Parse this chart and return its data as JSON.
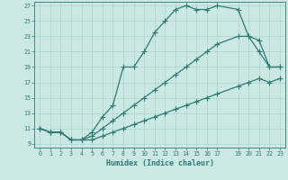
{
  "title": "",
  "xlabel": "Humidex (Indice chaleur)",
  "bg_color": "#cce8e4",
  "line_color": "#2d7a72",
  "grid_color": "#aad4ce",
  "xlim": [
    -0.5,
    23.5
  ],
  "ylim": [
    8.5,
    27.5
  ],
  "xticks": [
    0,
    1,
    2,
    3,
    4,
    5,
    6,
    7,
    8,
    9,
    10,
    11,
    12,
    13,
    14,
    15,
    16,
    17,
    19,
    20,
    21,
    22,
    23
  ],
  "yticks": [
    9,
    11,
    13,
    15,
    17,
    19,
    21,
    23,
    25,
    27
  ],
  "line1_x": [
    0,
    1,
    2,
    3,
    4,
    5,
    6,
    7,
    8,
    9,
    10,
    11,
    12,
    13,
    14,
    15,
    16,
    17,
    19,
    20,
    21,
    22,
    23
  ],
  "line1_y": [
    11,
    10.5,
    10.5,
    9.5,
    9.5,
    10.5,
    12.5,
    14,
    19,
    19,
    21,
    23.5,
    25,
    26.5,
    27,
    26.5,
    26.5,
    27,
    26.5,
    23,
    21,
    19,
    19
  ],
  "line2_x": [
    0,
    1,
    2,
    3,
    4,
    5,
    6,
    7,
    8,
    9,
    10,
    11,
    12,
    13,
    14,
    15,
    16,
    17,
    19,
    20,
    21,
    22,
    23
  ],
  "line2_y": [
    11,
    10.5,
    10.5,
    9.5,
    9.5,
    10,
    11,
    12,
    13,
    14,
    15,
    16,
    17,
    18,
    19,
    20,
    21,
    22,
    23,
    23,
    22.5,
    19,
    19
  ],
  "line3_x": [
    0,
    1,
    2,
    3,
    4,
    5,
    6,
    7,
    8,
    9,
    10,
    11,
    12,
    13,
    14,
    15,
    16,
    17,
    19,
    20,
    21,
    22,
    23
  ],
  "line3_y": [
    11,
    10.5,
    10.5,
    9.5,
    9.5,
    9.5,
    10,
    10.5,
    11,
    11.5,
    12,
    12.5,
    13,
    13.5,
    14,
    14.5,
    15,
    15.5,
    16.5,
    17,
    17.5,
    17,
    17.5
  ]
}
